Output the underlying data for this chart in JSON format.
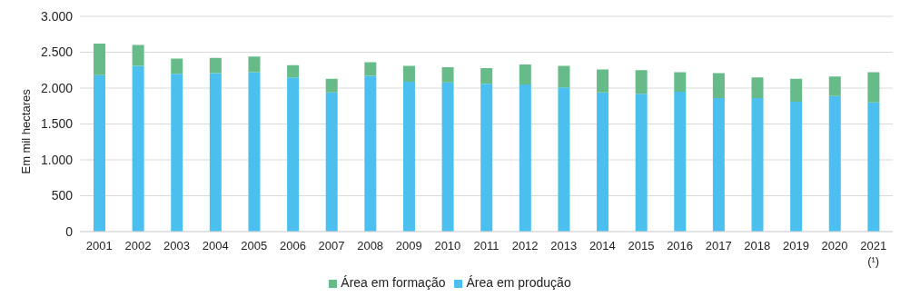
{
  "chart_data": {
    "type": "bar",
    "stacked": true,
    "ylabel": "Em mil hectares",
    "categories": [
      "2001",
      "2002",
      "2003",
      "2004",
      "2005",
      "2006",
      "2007",
      "2008",
      "2009",
      "2010",
      "2011",
      "2012",
      "2013",
      "2014",
      "2015",
      "2016",
      "2017",
      "2018",
      "2019",
      "2020",
      "2021\n(¹)"
    ],
    "series": [
      {
        "name": "Área em produção",
        "color": "#4bc0ef",
        "values": [
          2180,
          2310,
          2200,
          2210,
          2220,
          2150,
          1940,
          2170,
          2090,
          2080,
          2060,
          2050,
          2010,
          1940,
          1920,
          1950,
          1860,
          1860,
          1810,
          1890,
          1800
        ]
      },
      {
        "name": "Área em formação",
        "color": "#66bb88",
        "values": [
          440,
          290,
          210,
          210,
          220,
          170,
          190,
          190,
          220,
          210,
          220,
          280,
          300,
          320,
          330,
          270,
          350,
          290,
          320,
          270,
          420
        ]
      }
    ],
    "ylim": [
      0,
      3000
    ],
    "yticks": [
      {
        "value": 0,
        "label": "0"
      },
      {
        "value": 500,
        "label": "500"
      },
      {
        "value": 1000,
        "label": "1.000"
      },
      {
        "value": 1500,
        "label": "1.500"
      },
      {
        "value": 2000,
        "label": "2.000"
      },
      {
        "value": 2500,
        "label": "2.500"
      },
      {
        "value": 3000,
        "label": "3.000"
      }
    ],
    "grid": "y",
    "legend": "bottom"
  }
}
